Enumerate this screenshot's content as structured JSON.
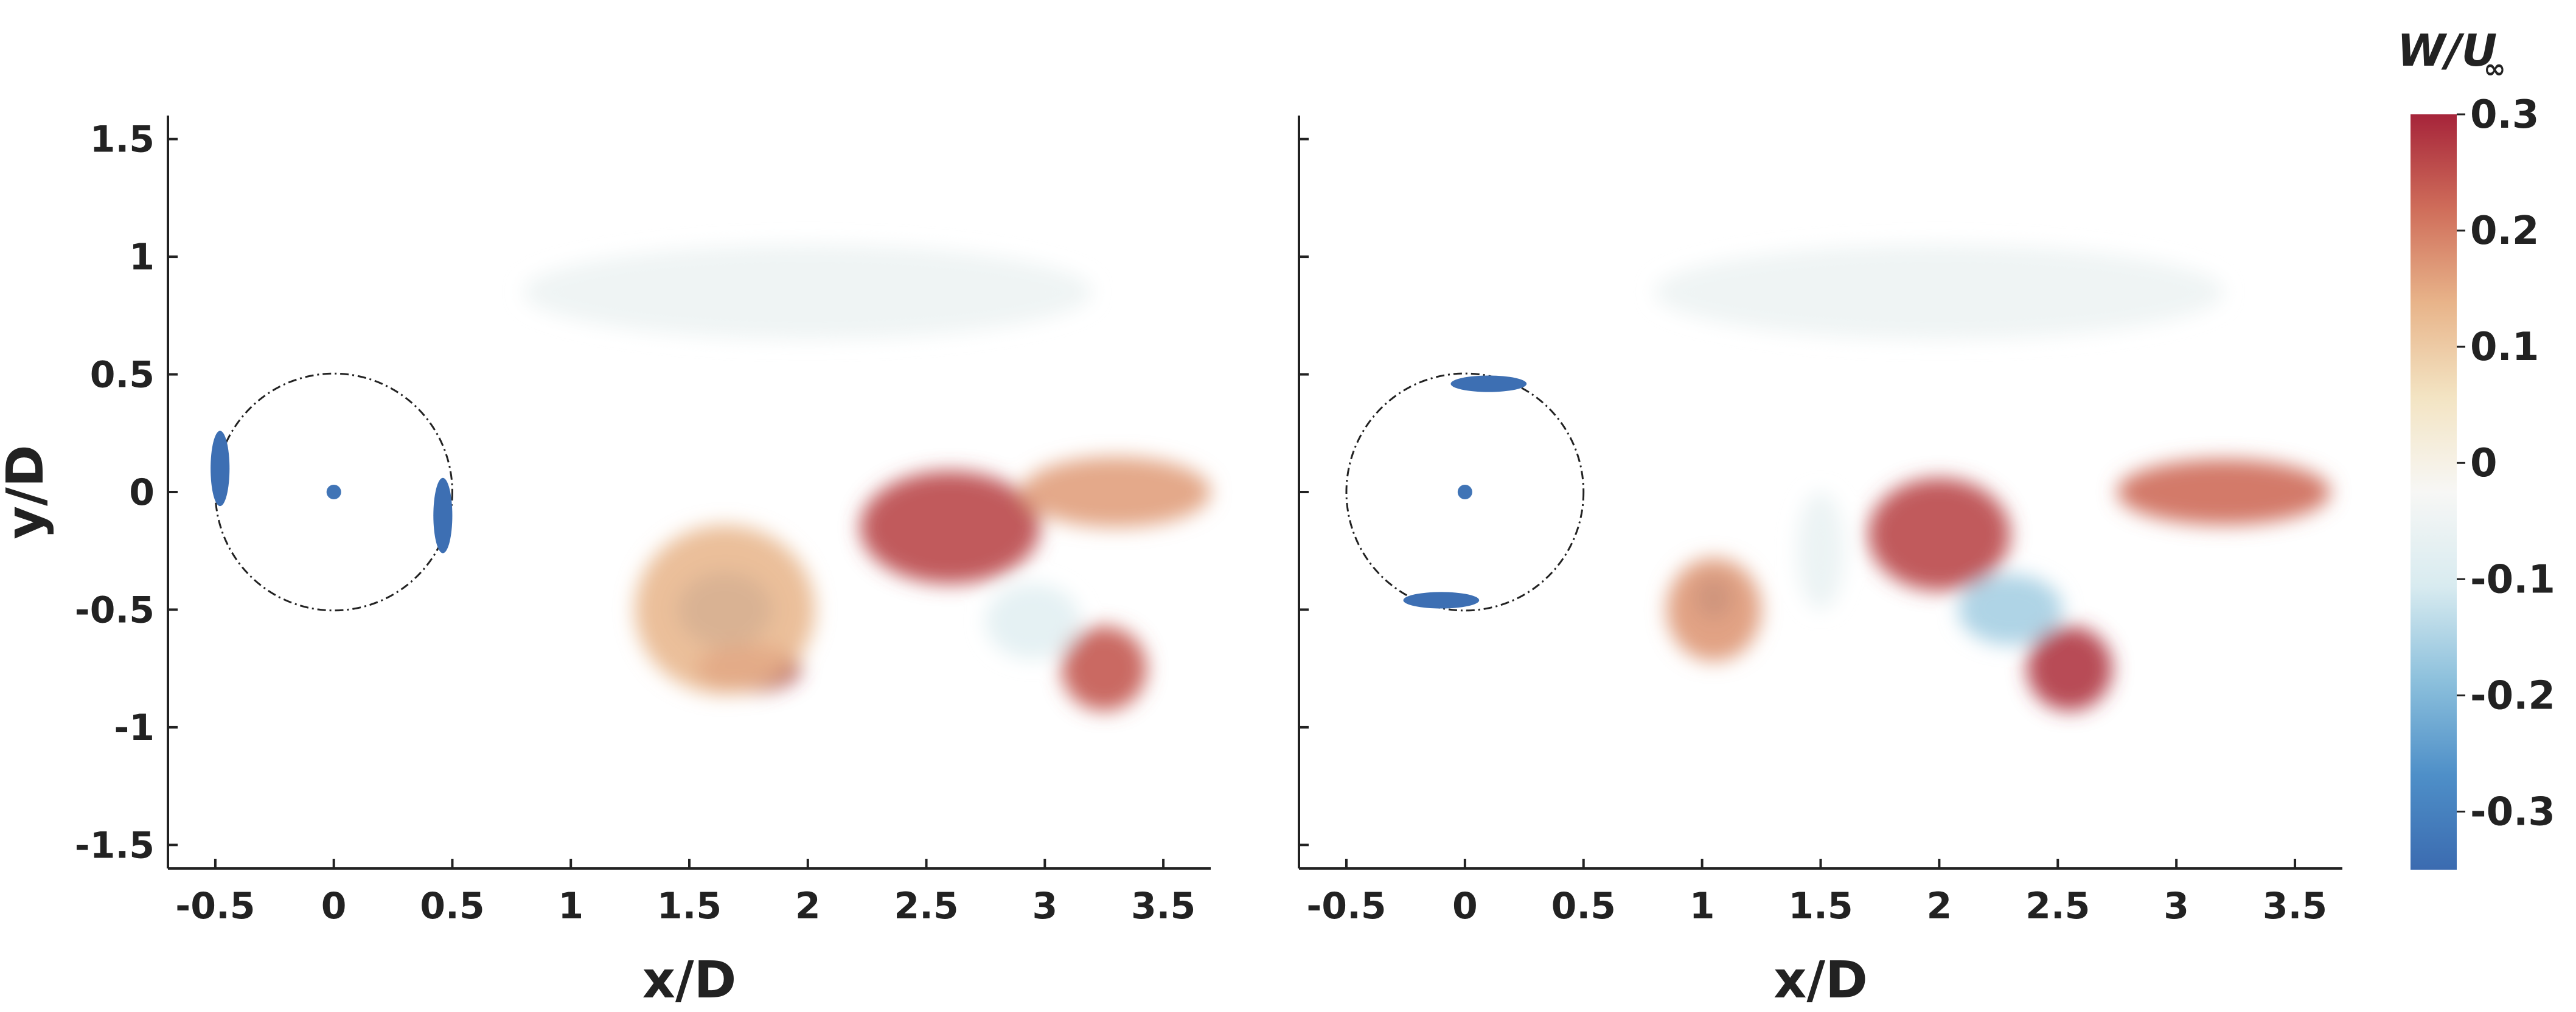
{
  "colorbar": {
    "title_main": "W/U",
    "title_sub": "∞",
    "range": [
      -0.35,
      0.3
    ],
    "ticks": [
      "0.3",
      "0.2",
      "0.1",
      "0",
      "-0.1",
      "-0.2",
      "-0.3"
    ],
    "tick_values": [
      0.3,
      0.2,
      0.1,
      0,
      -0.1,
      -0.2,
      -0.3
    ],
    "colormap": [
      "#3b6bb0",
      "#4e8fc8",
      "#8cc0dc",
      "#d8ebf0",
      "#f7f7f5",
      "#f3e4c3",
      "#e8b48a",
      "#cf6d5a",
      "#a6243a"
    ]
  },
  "chart_data": [
    {
      "type": "heatmap",
      "name": "left-panel",
      "xlabel": "x/D",
      "ylabel": "y/D",
      "xlim": [
        -0.7,
        3.7
      ],
      "ylim": [
        -1.6,
        1.6
      ],
      "xticks": [
        "-0.5",
        "0",
        "0.5",
        "1",
        "1.5",
        "2",
        "2.5",
        "3",
        "3.5"
      ],
      "xtick_values": [
        -0.5,
        0,
        0.5,
        1,
        1.5,
        2,
        2.5,
        3,
        3.5
      ],
      "yticks": [
        "1.5",
        "1",
        "0.5",
        "0",
        "-0.5",
        "-1",
        "-1.5"
      ],
      "ytick_values": [
        1.5,
        1,
        0.5,
        0,
        -0.5,
        -1,
        -1.5
      ],
      "cylinder": {
        "center": [
          0,
          0
        ],
        "radius": 0.5
      },
      "blobs": [
        {
          "x": 1.65,
          "y": -0.5,
          "rx": 0.2,
          "ry": 0.16,
          "value": -0.33
        },
        {
          "x": 1.75,
          "y": -0.75,
          "rx": 0.22,
          "ry": 0.1,
          "value": 0.3
        },
        {
          "x": 1.65,
          "y": -0.5,
          "rx": 0.38,
          "ry": 0.36,
          "value": 0.13
        },
        {
          "x": 2.6,
          "y": -0.15,
          "rx": 0.38,
          "ry": 0.24,
          "value": 0.26
        },
        {
          "x": 3.3,
          "y": 0.0,
          "rx": 0.4,
          "ry": 0.15,
          "value": 0.16
        },
        {
          "x": 3.25,
          "y": -0.75,
          "rx": 0.18,
          "ry": 0.18,
          "value": 0.24
        },
        {
          "x": 2.95,
          "y": -0.55,
          "rx": 0.2,
          "ry": 0.16,
          "value": -0.08
        },
        {
          "x": 2.0,
          "y": 0.85,
          "rx": 1.2,
          "ry": 0.2,
          "value": -0.05
        }
      ],
      "surface_patches": [
        {
          "x": -0.48,
          "y": 0.1,
          "rx": 0.04,
          "ry": 0.16,
          "value": -0.34
        },
        {
          "x": 0.46,
          "y": -0.1,
          "rx": 0.04,
          "ry": 0.16,
          "value": -0.34
        }
      ]
    },
    {
      "type": "heatmap",
      "name": "right-panel",
      "xlabel": "x/D",
      "ylabel": "",
      "xlim": [
        -0.7,
        3.7
      ],
      "ylim": [
        -1.6,
        1.6
      ],
      "xticks": [
        "-0.5",
        "0",
        "0.5",
        "1",
        "1.5",
        "2",
        "2.5",
        "3",
        "3.5"
      ],
      "xtick_values": [
        -0.5,
        0,
        0.5,
        1,
        1.5,
        2,
        2.5,
        3,
        3.5
      ],
      "yticks": [],
      "ytick_values": [
        1.5,
        1,
        0.5,
        0,
        -0.5,
        -1,
        -1.5
      ],
      "cylinder": {
        "center": [
          0,
          0
        ],
        "radius": 0.5
      },
      "blobs": [
        {
          "x": 1.05,
          "y": -0.45,
          "rx": 0.08,
          "ry": 0.09,
          "value": -0.33
        },
        {
          "x": 1.05,
          "y": -0.5,
          "rx": 0.2,
          "ry": 0.22,
          "value": 0.17
        },
        {
          "x": 2.0,
          "y": -0.18,
          "rx": 0.3,
          "ry": 0.24,
          "value": 0.26
        },
        {
          "x": 3.2,
          "y": 0.0,
          "rx": 0.45,
          "ry": 0.14,
          "value": 0.22
        },
        {
          "x": 2.3,
          "y": -0.5,
          "rx": 0.22,
          "ry": 0.15,
          "value": -0.16
        },
        {
          "x": 2.55,
          "y": -0.75,
          "rx": 0.18,
          "ry": 0.18,
          "value": 0.28
        },
        {
          "x": 1.5,
          "y": -0.25,
          "rx": 0.1,
          "ry": 0.25,
          "value": -0.06
        },
        {
          "x": 2.0,
          "y": 0.85,
          "rx": 1.2,
          "ry": 0.2,
          "value": -0.05
        }
      ],
      "surface_patches": [
        {
          "x": 0.1,
          "y": 0.46,
          "rx": 0.16,
          "ry": 0.035,
          "value": -0.34
        },
        {
          "x": -0.1,
          "y": -0.46,
          "rx": 0.16,
          "ry": 0.035,
          "value": -0.34
        }
      ]
    }
  ]
}
